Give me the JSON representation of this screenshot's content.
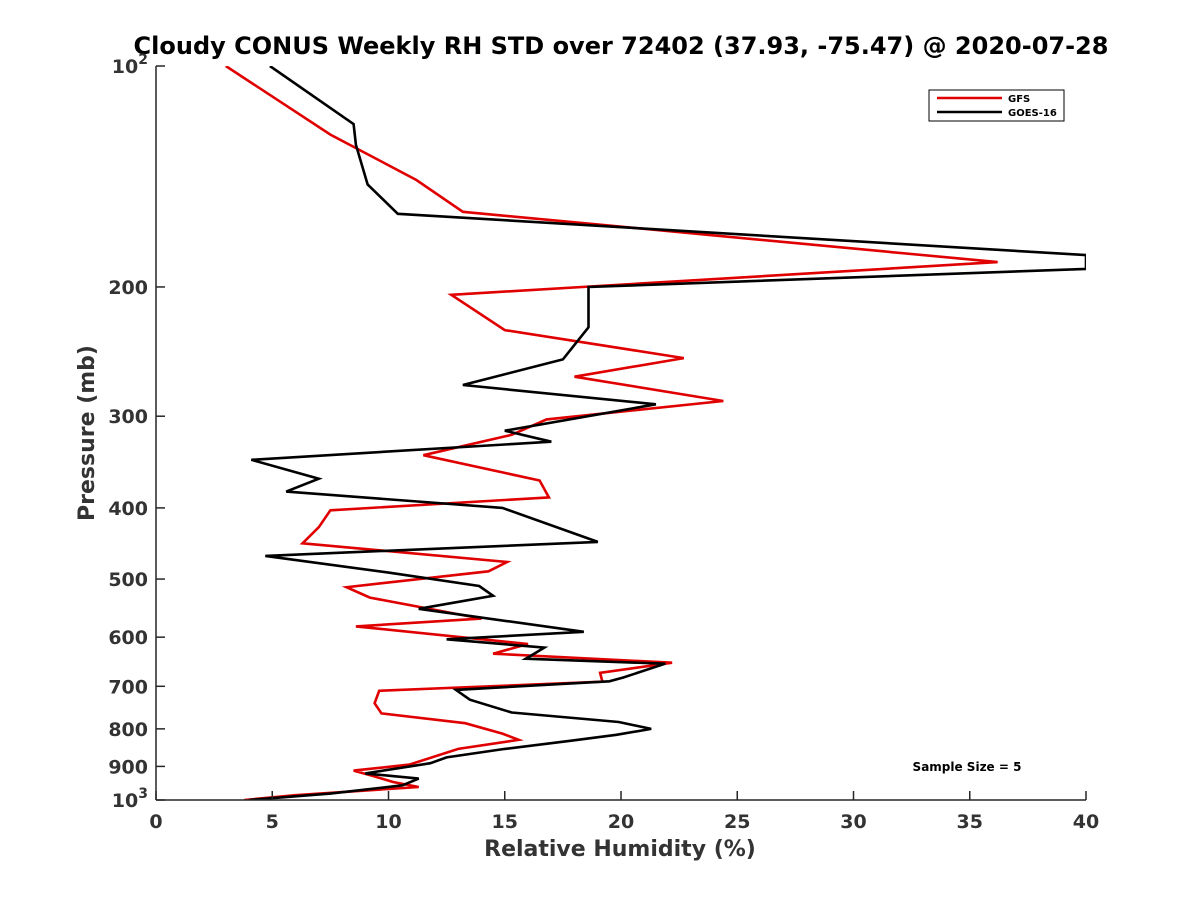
{
  "chart_data": {
    "type": "line",
    "title": "Cloudy CONUS Weekly RH STD over 72402 (37.93, -75.47) @ 2020-07-28",
    "xlabel": "Relative Humidity (%)",
    "ylabel": "Pressure (mb)",
    "xlim": [
      0,
      40
    ],
    "ylim": [
      100,
      1000
    ],
    "y_scale": "log",
    "y_reversed": true,
    "grid": false,
    "legend_position": "top-right",
    "x_ticks": [
      0,
      5,
      10,
      15,
      20,
      25,
      30,
      35,
      40
    ],
    "y_ticks": [
      {
        "value": 100,
        "base": "10",
        "exp": "2"
      },
      {
        "value": 200,
        "label": "200"
      },
      {
        "value": 300,
        "label": "300"
      },
      {
        "value": 400,
        "label": "400"
      },
      {
        "value": 500,
        "label": "500"
      },
      {
        "value": 600,
        "label": "600"
      },
      {
        "value": 700,
        "label": "700"
      },
      {
        "value": 800,
        "label": "800"
      },
      {
        "value": 900,
        "label": "900"
      },
      {
        "value": 1000,
        "base": "10",
        "exp": "3"
      }
    ],
    "annotation": "Sample Size = 5",
    "series": [
      {
        "name": "GFS",
        "color": "#e00000",
        "points": [
          [
            3.0,
            100
          ],
          [
            7.5,
            124
          ],
          [
            11.2,
            143
          ],
          [
            13.2,
            158
          ],
          [
            36.2,
            185
          ],
          [
            12.7,
            205
          ],
          [
            15.0,
            229
          ],
          [
            22.7,
            250
          ],
          [
            18.0,
            265
          ],
          [
            24.4,
            286
          ],
          [
            16.8,
            303
          ],
          [
            15.3,
            318
          ],
          [
            11.5,
            339
          ],
          [
            16.5,
            367
          ],
          [
            16.9,
            387
          ],
          [
            7.5,
            403
          ],
          [
            7.0,
            425
          ],
          [
            6.3,
            447
          ],
          [
            15.1,
            474
          ],
          [
            14.3,
            488
          ],
          [
            8.2,
            513
          ],
          [
            9.2,
            530
          ],
          [
            14.0,
            566
          ],
          [
            8.6,
            580
          ],
          [
            16.0,
            613
          ],
          [
            14.5,
            632
          ],
          [
            22.2,
            650
          ],
          [
            19.1,
            671
          ],
          [
            19.2,
            690
          ],
          [
            9.6,
            710
          ],
          [
            9.4,
            738
          ],
          [
            9.7,
            762
          ],
          [
            13.3,
            786
          ],
          [
            14.9,
            812
          ],
          [
            15.6,
            828
          ],
          [
            13.0,
            852
          ],
          [
            10.9,
            895
          ],
          [
            8.5,
            912
          ],
          [
            9.2,
            925
          ],
          [
            10.2,
            945
          ],
          [
            11.3,
            960
          ],
          [
            6.0,
            985
          ],
          [
            3.8,
            1000
          ]
        ]
      },
      {
        "name": "GOES-16",
        "color": "#000000",
        "points": [
          [
            4.9,
            100
          ],
          [
            8.5,
            120
          ],
          [
            8.6,
            128
          ],
          [
            9.1,
            145
          ],
          [
            10.4,
            159
          ],
          [
            40.0,
            181
          ],
          [
            40.0,
            189
          ],
          [
            18.6,
            200
          ],
          [
            18.6,
            227
          ],
          [
            17.5,
            251
          ],
          [
            13.2,
            272
          ],
          [
            21.5,
            289
          ],
          [
            15.0,
            314
          ],
          [
            17.0,
            325
          ],
          [
            4.1,
            344
          ],
          [
            7.0,
            365
          ],
          [
            5.6,
            380
          ],
          [
            14.9,
            400
          ],
          [
            19.0,
            445
          ],
          [
            4.7,
            465
          ],
          [
            10.0,
            490
          ],
          [
            13.9,
            511
          ],
          [
            14.5,
            527
          ],
          [
            11.3,
            549
          ],
          [
            18.4,
            590
          ],
          [
            12.5,
            604
          ],
          [
            16.7,
            620
          ],
          [
            16.3,
            631
          ],
          [
            15.9,
            642
          ],
          [
            21.9,
            652
          ],
          [
            20.1,
            681
          ],
          [
            19.5,
            689
          ],
          [
            12.9,
            708
          ],
          [
            13.5,
            730
          ],
          [
            15.3,
            760
          ],
          [
            19.9,
            783
          ],
          [
            21.3,
            800
          ],
          [
            19.8,
            815
          ],
          [
            17.9,
            830
          ],
          [
            15.0,
            852
          ],
          [
            12.5,
            875
          ],
          [
            11.8,
            891
          ],
          [
            9.0,
            920
          ],
          [
            11.3,
            935
          ],
          [
            10.6,
            955
          ],
          [
            7.5,
            980
          ],
          [
            4.0,
            1000
          ]
        ]
      }
    ]
  }
}
